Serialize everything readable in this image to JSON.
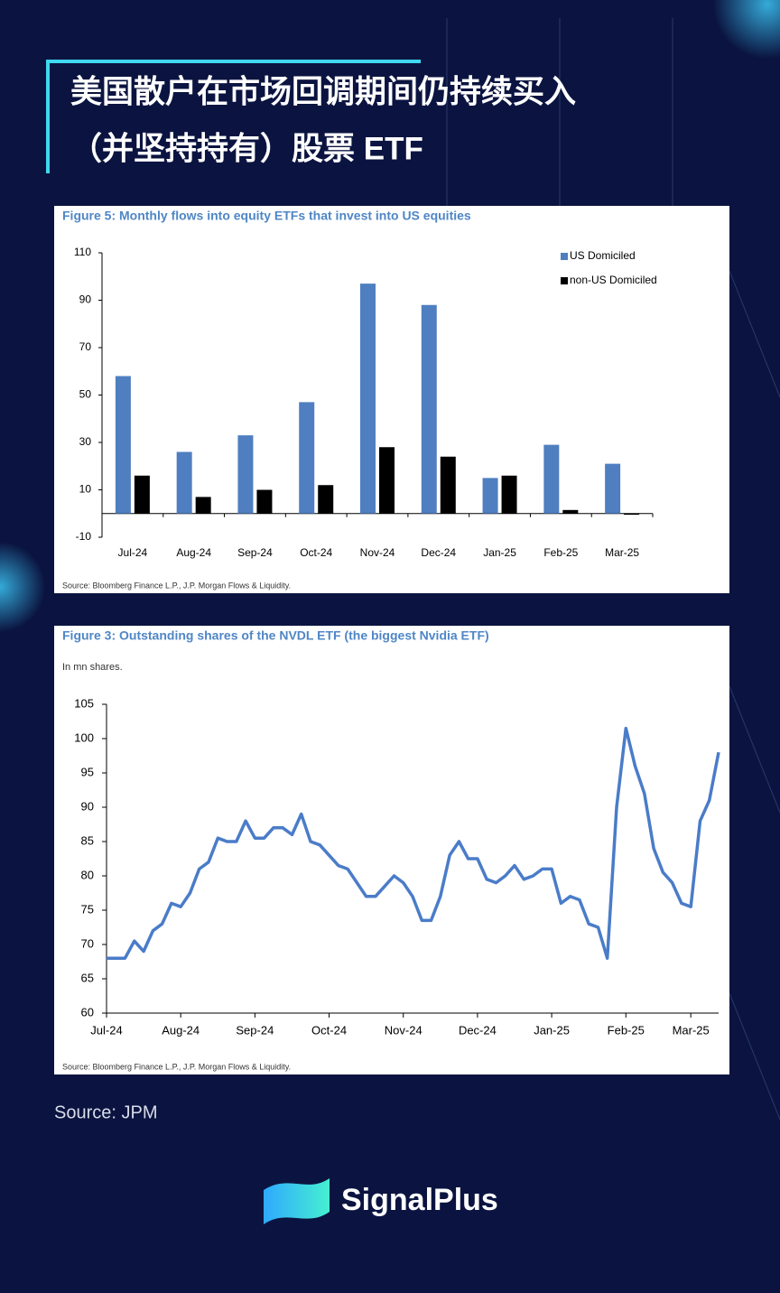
{
  "header": {
    "title": [
      "美国散户在市场回调期间仍持续买入",
      "（并坚持持有）股票 ETF"
    ]
  },
  "chart_data": [
    {
      "type": "bar",
      "title": "Figure 5: Monthly flows into equity ETFs that invest into US equities",
      "categories": [
        "Jul-24",
        "Aug-24",
        "Sep-24",
        "Oct-24",
        "Nov-24",
        "Dec-24",
        "Jan-25",
        "Feb-25",
        "Mar-25"
      ],
      "series": [
        {
          "name": "US Domiciled",
          "color": "#4f7fc0",
          "values": [
            58,
            26,
            33,
            47,
            97,
            88,
            15,
            29,
            21
          ]
        },
        {
          "name": "non-US Domiciled",
          "color": "#000000",
          "values": [
            16,
            7,
            10,
            12,
            28,
            24,
            16,
            1.5,
            -0.5
          ]
        }
      ],
      "ylim": [
        -10,
        110
      ],
      "yticks": [
        -10,
        10,
        30,
        50,
        70,
        90,
        110
      ],
      "legend": "upper right",
      "source": "Source: Bloomberg Finance L.P., J.P. Morgan Flows & Liquidity."
    },
    {
      "type": "line",
      "title": "Figure 3: Outstanding shares of the NVDL ETF (the biggest Nvidia ETF)",
      "subtitle": "In mn shares.",
      "categories": [
        "Jul-24",
        null,
        null,
        null,
        null,
        null,
        null,
        null,
        "Aug-24",
        null,
        null,
        null,
        null,
        null,
        null,
        null,
        "Sep-24",
        null,
        null,
        null,
        null,
        null,
        null,
        null,
        "Oct-24",
        null,
        null,
        null,
        null,
        null,
        null,
        null,
        "Nov-24",
        null,
        null,
        null,
        null,
        null,
        null,
        null,
        "Dec-24",
        null,
        null,
        null,
        null,
        null,
        null,
        null,
        "Jan-25",
        null,
        null,
        null,
        null,
        null,
        null,
        null,
        "Feb-25",
        null,
        null,
        null,
        null,
        null,
        null,
        "Mar-25",
        null,
        null,
        null
      ],
      "values": [
        68,
        68,
        68,
        70.5,
        69,
        72,
        73,
        76,
        75.5,
        77.5,
        81,
        82,
        85.5,
        85,
        85,
        88,
        85.5,
        85.5,
        87,
        87,
        86,
        89,
        85,
        84.5,
        83,
        81.5,
        81,
        79,
        77,
        77,
        78.5,
        80,
        79,
        77,
        73.5,
        73.5,
        77,
        83,
        85,
        82.5,
        82.5,
        79.5,
        79,
        80,
        81.5,
        79.5,
        80,
        81,
        81,
        76,
        77,
        76.5,
        73,
        72.5,
        68,
        90,
        101.5,
        96,
        92,
        84,
        80.5,
        79,
        76,
        75.5,
        88,
        91,
        98
      ],
      "color": "#4a7cc8",
      "ylim": [
        60,
        105
      ],
      "yticks": [
        60,
        65,
        70,
        75,
        80,
        85,
        90,
        95,
        100,
        105
      ],
      "source": "Source: Bloomberg Finance L.P., J.P. Morgan Flows & Liquidity."
    }
  ],
  "source": "Source: JPM",
  "brand": "SignalPlus"
}
